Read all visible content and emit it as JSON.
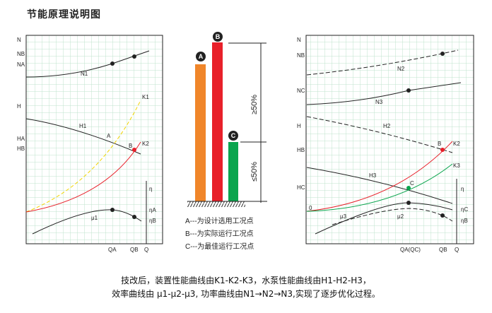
{
  "title": "节能原理说明图",
  "left_chart": {
    "y_labels": {
      "N": "N",
      "NB": "NB",
      "NA": "NA",
      "H": "H",
      "HA": "HA",
      "HB": "HB"
    },
    "x_labels": {
      "QA": "QA",
      "QB": "QB",
      "Q": "Q"
    },
    "eta_labels": {
      "eta": "η",
      "etaA": "ηA",
      "etaB": "ηB"
    },
    "curve_labels": {
      "N1": "N1",
      "H1": "H1",
      "K1": "K1",
      "K2": "K2",
      "mu1": "μ1",
      "A": "A",
      "B": "B"
    }
  },
  "right_chart": {
    "y_labels": {
      "N": "N",
      "NB": "NB",
      "NC": "NC",
      "H": "H",
      "HB": "HB",
      "HC": "HC"
    },
    "x_labels": {
      "QA": "QA(QC)",
      "QB": "QB",
      "Q": "Q"
    },
    "eta_labels": {
      "eta": "η",
      "etaC": "ηC",
      "etaB": "ηB"
    },
    "curve_labels": {
      "N2": "N2",
      "N3": "N3",
      "H2": "H2",
      "H3": "H3",
      "K2": "K2",
      "K3": "K3",
      "B": "B",
      "C": "C",
      "zero": "0",
      "mu3": "μ3",
      "mu2": "μ2"
    }
  },
  "bars": {
    "A": {
      "label": "A",
      "color": "#f0862a"
    },
    "B": {
      "label": "B",
      "color": "#e8202a"
    },
    "C": {
      "label": "C",
      "color": "#0ba54e"
    },
    "upper": "≥50%",
    "lower": "≤50%"
  },
  "legend": [
    "A---为设计选用工况点",
    "B---为实际运行工况点",
    "C---为最佳运行工况点"
  ],
  "caption": [
    "技改后，装置性能曲线由K1-K2-K3，水泵性能曲线由H1-H2-H3，",
    "效率曲线由 μ1-μ2-μ3, 功率曲线由N1→N2→N3,实现了逐步优化过程。"
  ]
}
